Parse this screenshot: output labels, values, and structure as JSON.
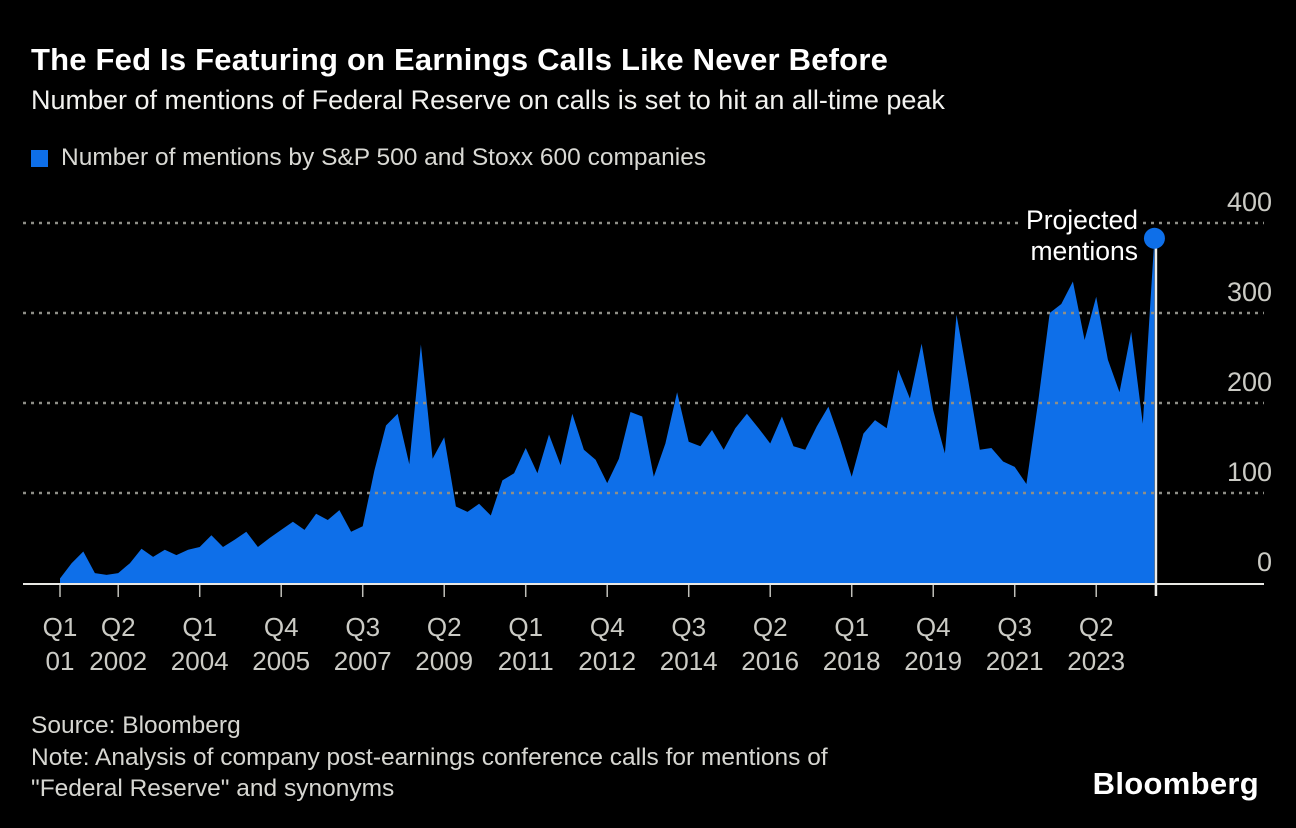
{
  "header": {
    "title": "The Fed Is Featuring on Earnings Calls Like Never Before",
    "subtitle": "Number of mentions of Federal Reserve on calls is set to hit an all-time peak"
  },
  "legend": {
    "label": "Number of mentions by S&P 500 and Stoxx 600 companies"
  },
  "annotation": {
    "line1": "Projected",
    "line2": "mentions"
  },
  "footer": {
    "source": "Source: Bloomberg",
    "note_line1": "Note: Analysis of company post-earnings conference calls for mentions of",
    "note_line2": "\"Federal Reserve\" and synonyms",
    "logo": "Bloomberg"
  },
  "colors": {
    "background": "#000000",
    "area": "#0E6FE9",
    "dot": "#0E6FE9",
    "grid": "#8F8F88",
    "axis": "#E8E8E4",
    "tick": "#BFBFB9",
    "marker_line": "#EDEDEA",
    "text_primary": "#FFFFFF",
    "text_secondary": "#D2D2CC"
  },
  "chart_data": {
    "type": "area",
    "title": "The Fed Is Featuring on Earnings Calls Like Never Before",
    "subtitle": "Number of mentions of Federal Reserve on calls is set to hit an all-time peak",
    "series_name": "Number of mentions by S&P 500 and Stoxx 600 companies",
    "frequency": "quarterly",
    "x_start": "Q1 2001",
    "x_end": "Q3 2024",
    "ylim": [
      0,
      400
    ],
    "yticks": [
      0,
      100,
      200,
      300,
      400
    ],
    "grid": "horizontal dotted",
    "legend_position": "top-left",
    "values": [
      5,
      22,
      35,
      11,
      9,
      11,
      22,
      38,
      29,
      37,
      31,
      37,
      40,
      53,
      40,
      48,
      57,
      40,
      50,
      59,
      68,
      59,
      77,
      70,
      81,
      57,
      63,
      125,
      175,
      188,
      132,
      265,
      138,
      162,
      85,
      79,
      88,
      75,
      114,
      122,
      150,
      122,
      165,
      131,
      188,
      148,
      137,
      111,
      138,
      190,
      185,
      118,
      155,
      212,
      157,
      152,
      170,
      148,
      172,
      188,
      172,
      155,
      185,
      152,
      148,
      174,
      196,
      159,
      118,
      166,
      181,
      172,
      237,
      205,
      266,
      192,
      144,
      298,
      225,
      148,
      150,
      135,
      129,
      110,
      200,
      300,
      310,
      335,
      270,
      318,
      248,
      212,
      279,
      177,
      383
    ],
    "x_ticks": [
      {
        "q": 0,
        "top": "Q1",
        "bottom": "01"
      },
      {
        "q": 5,
        "top": "Q2",
        "bottom": "2002"
      },
      {
        "q": 12,
        "top": "Q1",
        "bottom": "2004"
      },
      {
        "q": 19,
        "top": "Q4",
        "bottom": "2005"
      },
      {
        "q": 26,
        "top": "Q3",
        "bottom": "2007"
      },
      {
        "q": 33,
        "top": "Q2",
        "bottom": "2009"
      },
      {
        "q": 40,
        "top": "Q1",
        "bottom": "2011"
      },
      {
        "q": 47,
        "top": "Q4",
        "bottom": "2012"
      },
      {
        "q": 54,
        "top": "Q3",
        "bottom": "2014"
      },
      {
        "q": 61,
        "top": "Q2",
        "bottom": "2016"
      },
      {
        "q": 68,
        "top": "Q1",
        "bottom": "2018"
      },
      {
        "q": 75,
        "top": "Q4",
        "bottom": "2019"
      },
      {
        "q": 82,
        "top": "Q3",
        "bottom": "2021"
      },
      {
        "q": 89,
        "top": "Q2",
        "bottom": "2023"
      }
    ],
    "projected_point": {
      "quarter": "Q3 2024",
      "value": 383,
      "label": "Projected mentions"
    }
  }
}
